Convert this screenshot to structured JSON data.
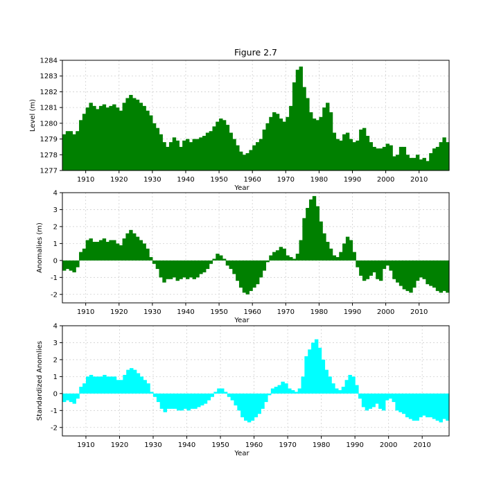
{
  "figure": {
    "title": "Figure 2.7",
    "colors": {
      "panel1": "#008000",
      "panel2": "#008000",
      "panel3": "#00ffff",
      "axis": "#000000",
      "grid": "#cfcfcf"
    }
  },
  "chart_data": [
    {
      "type": "bar",
      "title": "Figure 2.7",
      "xlabel": "Year",
      "ylabel": "Level (m)",
      "xlim": [
        1903,
        2019
      ],
      "ylim": [
        1277,
        1284
      ],
      "xticks": [
        1910,
        1920,
        1930,
        1940,
        1950,
        1960,
        1970,
        1980,
        1990,
        2000,
        2010
      ],
      "yticks": [
        1277,
        1278,
        1279,
        1280,
        1281,
        1282,
        1283,
        1284
      ],
      "grid": true,
      "baseline": 1277,
      "x": [
        1903,
        1904,
        1905,
        1906,
        1907,
        1908,
        1909,
        1910,
        1911,
        1912,
        1913,
        1914,
        1915,
        1916,
        1917,
        1918,
        1919,
        1920,
        1921,
        1922,
        1923,
        1924,
        1925,
        1926,
        1927,
        1928,
        1929,
        1930,
        1931,
        1932,
        1933,
        1934,
        1935,
        1936,
        1937,
        1938,
        1939,
        1940,
        1941,
        1942,
        1943,
        1944,
        1945,
        1946,
        1947,
        1948,
        1949,
        1950,
        1951,
        1952,
        1953,
        1954,
        1955,
        1956,
        1957,
        1958,
        1959,
        1960,
        1961,
        1962,
        1963,
        1964,
        1965,
        1966,
        1967,
        1968,
        1969,
        1970,
        1971,
        1972,
        1973,
        1974,
        1975,
        1976,
        1977,
        1978,
        1979,
        1980,
        1981,
        1982,
        1983,
        1984,
        1985,
        1986,
        1987,
        1988,
        1989,
        1990,
        1991,
        1992,
        1993,
        1994,
        1995,
        1996,
        1997,
        1998,
        1999,
        2000,
        2001,
        2002,
        2003,
        2004,
        2005,
        2006,
        2007,
        2008,
        2009,
        2010,
        2011,
        2012,
        2013,
        2014,
        2015,
        2016,
        2017,
        2018
      ],
      "values": [
        1279.3,
        1279.5,
        1279.5,
        1279.3,
        1279.5,
        1280.2,
        1280.6,
        1281.0,
        1281.3,
        1281.1,
        1280.9,
        1281.1,
        1281.2,
        1281.0,
        1281.1,
        1281.2,
        1281.0,
        1280.8,
        1281.3,
        1281.6,
        1281.8,
        1281.6,
        1281.5,
        1281.3,
        1281.1,
        1280.8,
        1280.5,
        1280.0,
        1279.7,
        1279.3,
        1278.8,
        1278.5,
        1278.8,
        1279.1,
        1278.9,
        1278.5,
        1278.9,
        1279.0,
        1278.8,
        1279.0,
        1279.0,
        1279.1,
        1279.2,
        1279.4,
        1279.5,
        1279.8,
        1280.1,
        1280.3,
        1280.2,
        1279.9,
        1279.4,
        1279.0,
        1278.6,
        1278.2,
        1278.0,
        1278.1,
        1278.3,
        1278.6,
        1278.8,
        1279.0,
        1279.6,
        1280.0,
        1280.4,
        1280.7,
        1280.6,
        1280.3,
        1280.1,
        1280.4,
        1281.1,
        1282.6,
        1283.4,
        1283.6,
        1282.3,
        1281.6,
        1280.7,
        1280.3,
        1280.2,
        1280.4,
        1281.0,
        1281.3,
        1280.7,
        1279.4,
        1279.0,
        1278.9,
        1279.3,
        1279.4,
        1279.0,
        1278.8,
        1278.9,
        1279.6,
        1279.7,
        1279.2,
        1278.8,
        1278.5,
        1278.4,
        1278.4,
        1278.5,
        1278.7,
        1278.6,
        1277.9,
        1278.0,
        1278.5,
        1278.5,
        1278.0,
        1277.8,
        1277.8,
        1278.0,
        1277.7,
        1277.8,
        1277.6,
        1278.1,
        1278.4,
        1278.5,
        1278.8,
        1279.1,
        1278.8
      ],
      "color": "#008000"
    },
    {
      "type": "bar",
      "xlabel": "Year",
      "ylabel": "Anomalies (m)",
      "xlim": [
        1903,
        2019
      ],
      "ylim": [
        -2.5,
        4
      ],
      "xticks": [
        1910,
        1920,
        1930,
        1940,
        1950,
        1960,
        1970,
        1980,
        1990,
        2000,
        2010
      ],
      "yticks": [
        -2,
        -1,
        0,
        1,
        2,
        3,
        4
      ],
      "grid": true,
      "baseline": 0,
      "x": [
        1903,
        1904,
        1905,
        1906,
        1907,
        1908,
        1909,
        1910,
        1911,
        1912,
        1913,
        1914,
        1915,
        1916,
        1917,
        1918,
        1919,
        1920,
        1921,
        1922,
        1923,
        1924,
        1925,
        1926,
        1927,
        1928,
        1929,
        1930,
        1931,
        1932,
        1933,
        1934,
        1935,
        1936,
        1937,
        1938,
        1939,
        1940,
        1941,
        1942,
        1943,
        1944,
        1945,
        1946,
        1947,
        1948,
        1949,
        1950,
        1951,
        1952,
        1953,
        1954,
        1955,
        1956,
        1957,
        1958,
        1959,
        1960,
        1961,
        1962,
        1963,
        1964,
        1965,
        1966,
        1967,
        1968,
        1969,
        1970,
        1971,
        1972,
        1973,
        1974,
        1975,
        1976,
        1977,
        1978,
        1979,
        1980,
        1981,
        1982,
        1983,
        1984,
        1985,
        1986,
        1987,
        1988,
        1989,
        1990,
        1991,
        1992,
        1993,
        1994,
        1995,
        1996,
        1997,
        1998,
        1999,
        2000,
        2001,
        2002,
        2003,
        2004,
        2005,
        2006,
        2007,
        2008,
        2009,
        2010,
        2011,
        2012,
        2013,
        2014,
        2015,
        2016,
        2017,
        2018
      ],
      "values": [
        -0.6,
        -0.5,
        -0.6,
        -0.7,
        -0.4,
        0.5,
        0.7,
        1.2,
        1.3,
        1.1,
        1.1,
        1.2,
        1.3,
        1.1,
        1.2,
        1.2,
        1.0,
        0.9,
        1.3,
        1.6,
        1.8,
        1.6,
        1.4,
        1.2,
        1.0,
        0.7,
        0.2,
        -0.2,
        -0.5,
        -1.0,
        -1.3,
        -1.1,
        -1.1,
        -1.0,
        -1.2,
        -1.1,
        -1.0,
        -1.1,
        -1.0,
        -1.1,
        -1.0,
        -0.8,
        -0.7,
        -0.5,
        -0.2,
        0.1,
        0.4,
        0.3,
        0.1,
        -0.3,
        -0.5,
        -0.8,
        -1.2,
        -1.6,
        -1.9,
        -2.0,
        -1.8,
        -1.6,
        -1.4,
        -1.0,
        -0.6,
        -0.1,
        0.3,
        0.5,
        0.6,
        0.8,
        0.7,
        0.3,
        0.2,
        0.1,
        0.4,
        1.2,
        2.5,
        3.1,
        3.6,
        3.8,
        3.2,
        2.3,
        1.6,
        1.1,
        0.7,
        0.3,
        0.2,
        0.5,
        1.0,
        1.4,
        1.2,
        0.5,
        -0.4,
        -0.9,
        -1.2,
        -1.1,
        -0.9,
        -0.7,
        -1.1,
        -1.2,
        -0.5,
        -0.3,
        -0.6,
        -1.1,
        -1.3,
        -1.5,
        -1.7,
        -1.8,
        -1.9,
        -1.6,
        -1.2,
        -1.0,
        -1.1,
        -1.4,
        -1.5,
        -1.6,
        -1.8,
        -1.9,
        -1.8,
        -1.9
      ],
      "color": "#008000"
    },
    {
      "type": "bar",
      "xlabel": "Year",
      "ylabel": "Standardized Anomlies",
      "xlim": [
        1903,
        2018
      ],
      "ylim": [
        -2.5,
        4
      ],
      "xticks": [
        1910,
        1920,
        1930,
        1940,
        1950,
        1960,
        1970,
        1980,
        1990,
        2000,
        2010
      ],
      "yticks": [
        -2,
        -1,
        0,
        1,
        2,
        3,
        4
      ],
      "grid": true,
      "baseline": 0,
      "x": [
        1903,
        1904,
        1905,
        1906,
        1907,
        1908,
        1909,
        1910,
        1911,
        1912,
        1913,
        1914,
        1915,
        1916,
        1917,
        1918,
        1919,
        1920,
        1921,
        1922,
        1923,
        1924,
        1925,
        1926,
        1927,
        1928,
        1929,
        1930,
        1931,
        1932,
        1933,
        1934,
        1935,
        1936,
        1937,
        1938,
        1939,
        1940,
        1941,
        1942,
        1943,
        1944,
        1945,
        1946,
        1947,
        1948,
        1949,
        1950,
        1951,
        1952,
        1953,
        1954,
        1955,
        1956,
        1957,
        1958,
        1959,
        1960,
        1961,
        1962,
        1963,
        1964,
        1965,
        1966,
        1967,
        1968,
        1969,
        1970,
        1971,
        1972,
        1973,
        1974,
        1975,
        1976,
        1977,
        1978,
        1979,
        1980,
        1981,
        1982,
        1983,
        1984,
        1985,
        1986,
        1987,
        1988,
        1989,
        1990,
        1991,
        1992,
        1993,
        1994,
        1995,
        1996,
        1997,
        1998,
        1999,
        2000,
        2001,
        2002,
        2003,
        2004,
        2005,
        2006,
        2007,
        2008,
        2009,
        2010,
        2011,
        2012,
        2013,
        2014,
        2015,
        2016,
        2017
      ],
      "values": [
        -0.5,
        -0.4,
        -0.5,
        -0.6,
        -0.3,
        0.4,
        0.6,
        1.0,
        1.1,
        1.0,
        1.0,
        1.0,
        1.1,
        1.0,
        1.0,
        1.0,
        0.8,
        0.8,
        1.1,
        1.4,
        1.5,
        1.4,
        1.2,
        1.0,
        0.8,
        0.6,
        0.1,
        -0.2,
        -0.5,
        -0.9,
        -1.1,
        -0.9,
        -0.9,
        -0.9,
        -1.0,
        -1.0,
        -0.9,
        -1.0,
        -0.9,
        -0.9,
        -0.8,
        -0.7,
        -0.6,
        -0.4,
        -0.2,
        0.1,
        0.3,
        0.3,
        0.1,
        -0.2,
        -0.4,
        -0.7,
        -1.0,
        -1.4,
        -1.6,
        -1.7,
        -1.6,
        -1.4,
        -1.2,
        -0.9,
        -0.5,
        -0.1,
        0.3,
        0.4,
        0.5,
        0.7,
        0.6,
        0.3,
        0.2,
        0.1,
        0.3,
        1.0,
        2.2,
        2.6,
        3.0,
        3.2,
        2.7,
        2.0,
        1.4,
        1.0,
        0.6,
        0.3,
        0.2,
        0.4,
        0.8,
        1.1,
        1.0,
        0.5,
        -0.3,
        -0.8,
        -1.0,
        -0.9,
        -0.8,
        -0.6,
        -0.9,
        -1.0,
        -0.4,
        -0.3,
        -0.5,
        -1.0,
        -1.1,
        -1.2,
        -1.4,
        -1.5,
        -1.6,
        -1.6,
        -1.4,
        -1.3,
        -1.4,
        -1.4,
        -1.5,
        -1.6,
        -1.7,
        -1.5,
        -1.6
      ],
      "color": "#00ffff"
    }
  ]
}
